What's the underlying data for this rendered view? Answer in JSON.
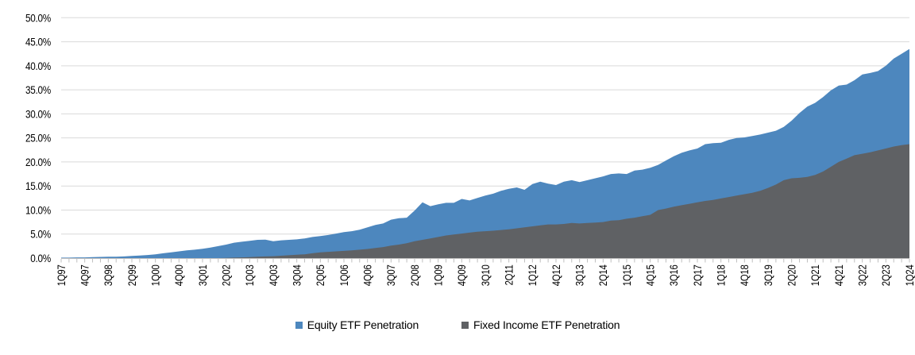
{
  "chart_data": {
    "type": "area",
    "stacked": false,
    "title": "",
    "xlabel": "",
    "ylabel": "",
    "ylim": [
      0,
      50
    ],
    "grid": true,
    "legend_position": "bottom-center",
    "y_ticks": [
      "0.0%",
      "5.0%",
      "10.0%",
      "15.0%",
      "20.0%",
      "25.0%",
      "30.0%",
      "35.0%",
      "40.0%",
      "45.0%",
      "50.0%"
    ],
    "x_tick_labels": [
      "1Q97",
      "4Q97",
      "3Q98",
      "2Q99",
      "1Q00",
      "4Q00",
      "3Q01",
      "2Q02",
      "1Q03",
      "4Q03",
      "3Q04",
      "2Q05",
      "1Q06",
      "4Q06",
      "3Q07",
      "2Q08",
      "1Q09",
      "4Q09",
      "3Q10",
      "2Q11",
      "1Q12",
      "4Q12",
      "3Q13",
      "2Q14",
      "1Q15",
      "4Q15",
      "3Q16",
      "2Q17",
      "1Q18",
      "4Q18",
      "3Q19",
      "2Q20",
      "1Q21",
      "4Q21",
      "3Q22",
      "2Q23",
      "1Q24"
    ],
    "x_label_every_n_quarters": 3,
    "x_start": "1Q97",
    "x_end": "1Q24",
    "colors": {
      "equity": "#4D87BE",
      "fixed_income": "#5F6164",
      "gridline": "#D9D9D9",
      "axis": "#BFBFBF"
    },
    "series": [
      {
        "name": "Equity ETF Penetration",
        "color": "#4D87BE",
        "values": [
          0.1,
          0.1,
          0.15,
          0.15,
          0.2,
          0.25,
          0.3,
          0.3,
          0.35,
          0.45,
          0.55,
          0.65,
          0.8,
          1.0,
          1.2,
          1.4,
          1.6,
          1.75,
          1.95,
          2.2,
          2.5,
          2.8,
          3.2,
          3.4,
          3.6,
          3.8,
          3.85,
          3.5,
          3.7,
          3.8,
          3.9,
          4.1,
          4.4,
          4.6,
          4.8,
          5.1,
          5.4,
          5.6,
          5.9,
          6.4,
          6.9,
          7.2,
          8.0,
          8.3,
          8.4,
          9.9,
          11.6,
          10.8,
          11.2,
          11.5,
          11.5,
          12.3,
          12.0,
          12.5,
          13.0,
          13.4,
          14.0,
          14.4,
          14.7,
          14.2,
          15.4,
          15.9,
          15.5,
          15.2,
          15.9,
          16.2,
          15.8,
          16.2,
          16.6,
          17.0,
          17.5,
          17.6,
          17.5,
          18.2,
          18.4,
          18.8,
          19.4,
          20.3,
          21.2,
          21.9,
          22.4,
          22.8,
          23.7,
          23.9,
          24.0,
          24.6,
          25.0,
          25.1,
          25.4,
          25.7,
          26.1,
          26.5,
          27.3,
          28.6,
          30.2,
          31.5,
          32.3,
          33.5,
          34.9,
          35.9,
          36.1,
          37.0,
          38.2,
          38.5,
          38.9,
          40.0,
          41.5,
          42.5,
          43.5
        ]
      },
      {
        "name": "Fixed Income ETF Penetration",
        "color": "#5F6164",
        "values": [
          0,
          0,
          0,
          0,
          0,
          0,
          0,
          0,
          0,
          0,
          0,
          0,
          0,
          0,
          0,
          0,
          0,
          0,
          0,
          0,
          0,
          0.05,
          0.1,
          0.15,
          0.2,
          0.3,
          0.35,
          0.4,
          0.5,
          0.6,
          0.7,
          0.8,
          1.0,
          1.2,
          1.3,
          1.4,
          1.5,
          1.6,
          1.75,
          1.9,
          2.1,
          2.3,
          2.6,
          2.8,
          3.1,
          3.5,
          3.8,
          4.1,
          4.4,
          4.7,
          4.9,
          5.1,
          5.3,
          5.5,
          5.6,
          5.7,
          5.85,
          6.0,
          6.2,
          6.4,
          6.6,
          6.8,
          7.0,
          7.0,
          7.1,
          7.3,
          7.2,
          7.3,
          7.4,
          7.5,
          7.8,
          7.9,
          8.2,
          8.4,
          8.7,
          9.0,
          10.0,
          10.3,
          10.7,
          11.0,
          11.3,
          11.6,
          11.9,
          12.1,
          12.4,
          12.7,
          13.0,
          13.3,
          13.6,
          14.0,
          14.6,
          15.3,
          16.2,
          16.6,
          16.7,
          16.9,
          17.3,
          18.0,
          19.0,
          20.0,
          20.7,
          21.4,
          21.7,
          22.0,
          22.4,
          22.8,
          23.2,
          23.5,
          23.7
        ]
      }
    ]
  }
}
